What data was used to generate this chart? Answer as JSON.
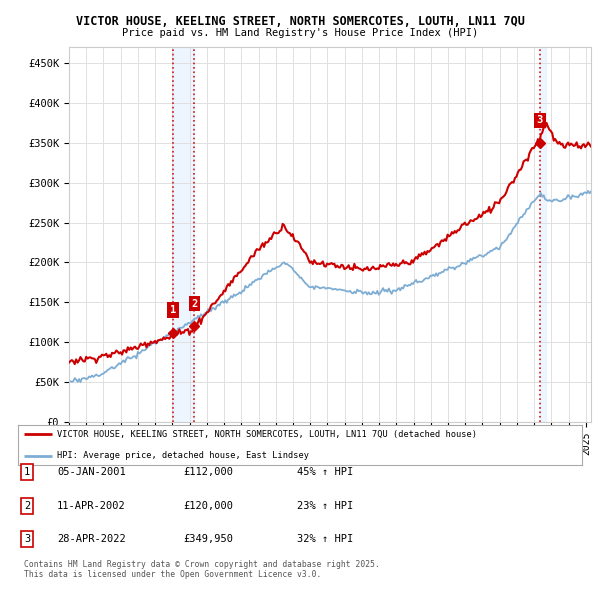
{
  "title_line1": "VICTOR HOUSE, KEELING STREET, NORTH SOMERCOTES, LOUTH, LN11 7QU",
  "title_line2": "Price paid vs. HM Land Registry's House Price Index (HPI)",
  "ylabel_ticks": [
    "£0",
    "£50K",
    "£100K",
    "£150K",
    "£200K",
    "£250K",
    "£300K",
    "£350K",
    "£400K",
    "£450K"
  ],
  "ytick_values": [
    0,
    50000,
    100000,
    150000,
    200000,
    250000,
    300000,
    350000,
    400000,
    450000
  ],
  "ylim": [
    0,
    470000
  ],
  "xlim_start": 1995.0,
  "xlim_end": 2025.3,
  "sale_dates": [
    2001.03,
    2002.28,
    2022.33
  ],
  "sale_prices": [
    112000,
    120000,
    349950
  ],
  "sale_labels": [
    "1",
    "2",
    "3"
  ],
  "vline_color": "#cc0000",
  "marker_color": "#cc0000",
  "hpi_line_color": "#7eadd4",
  "price_line_color": "#cc0000",
  "legend_line1": "VICTOR HOUSE, KEELING STREET, NORTH SOMERCOTES, LOUTH, LN11 7QU (detached house)",
  "legend_line2": "HPI: Average price, detached house, East Lindsey",
  "table_data": [
    {
      "num": "1",
      "date": "05-JAN-2001",
      "price": "£112,000",
      "change": "45% ↑ HPI"
    },
    {
      "num": "2",
      "date": "11-APR-2002",
      "price": "£120,000",
      "change": "23% ↑ HPI"
    },
    {
      "num": "3",
      "date": "28-APR-2022",
      "price": "£349,950",
      "change": "32% ↑ HPI"
    }
  ],
  "footnote": "Contains HM Land Registry data © Crown copyright and database right 2025.\nThis data is licensed under the Open Government Licence v3.0.",
  "bg_color": "#ffffff",
  "plot_bg_color": "#ffffff",
  "grid_color": "#e0e0e0",
  "label_box_color": "#cc0000",
  "span_color": "#ddeeff",
  "span_alpha": 0.5
}
